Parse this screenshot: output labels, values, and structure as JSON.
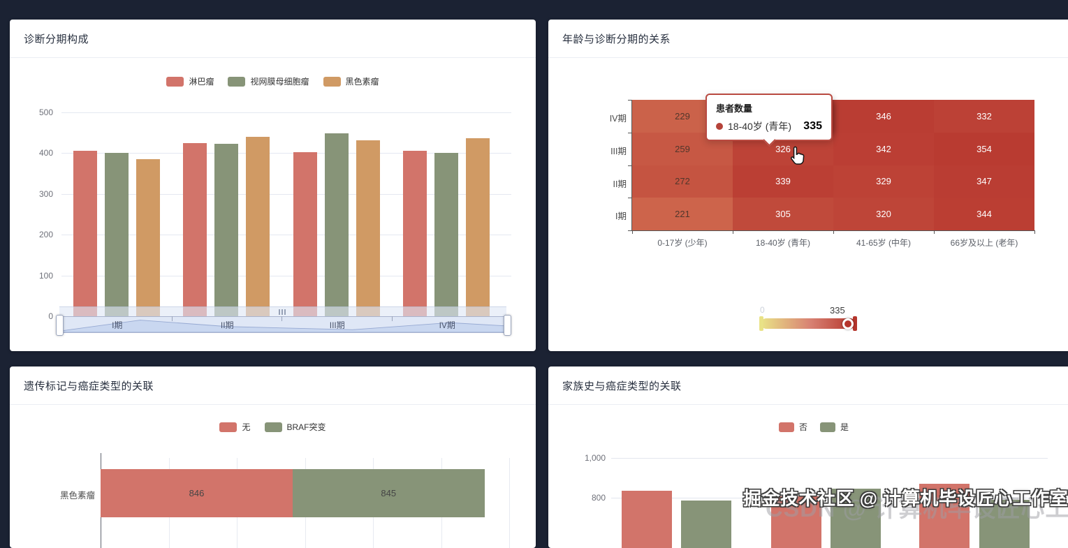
{
  "page": {
    "background": "#1b2233",
    "watermark_front": "掘金技术社区 @ 计算机毕设匠心工作室",
    "watermark_back": "CSDN @ 计算机毕设匠心工作室"
  },
  "palette": {
    "red": "#d2746a",
    "green": "#879478",
    "tan": "#d09a64"
  },
  "cards": [
    {
      "title": "诊断分期构成"
    },
    {
      "title": "年龄与诊断分期的关系"
    },
    {
      "title": "遗传标记与癌症类型的关联"
    },
    {
      "title": "家族史与癌症类型的关联"
    }
  ],
  "chart_data": [
    {
      "type": "bar",
      "title": "诊断分期构成",
      "categories": [
        "I期",
        "II期",
        "III期",
        "IV期"
      ],
      "series": [
        {
          "name": "淋巴瘤",
          "color": "red",
          "values": [
            405,
            424,
            402,
            406
          ]
        },
        {
          "name": "视网膜母细胞瘤",
          "color": "green",
          "values": [
            401,
            423,
            448,
            400
          ]
        },
        {
          "name": "黑色素瘤",
          "color": "tan",
          "values": [
            385,
            440,
            431,
            436
          ]
        }
      ],
      "ylim": [
        0,
        500
      ],
      "yticks": [
        0,
        100,
        200,
        300,
        400,
        500
      ],
      "legend_position": "top",
      "grid": true,
      "datazoom_slider": true
    },
    {
      "type": "heatmap",
      "title": "年龄与诊断分期的关系",
      "x_categories": [
        "0-17岁 (少年)",
        "18-40岁 (青年)",
        "41-65岁 (中年)",
        "66岁及以上 (老年)"
      ],
      "y_categories_top_to_bottom": [
        "IV期",
        "III期",
        "II期",
        "I期"
      ],
      "values_top_to_bottom": [
        [
          229,
          335,
          346,
          332
        ],
        [
          259,
          326,
          342,
          354
        ],
        [
          272,
          339,
          329,
          347
        ],
        [
          221,
          305,
          320,
          344
        ]
      ],
      "hovered_cell": {
        "row": 0,
        "col": 1,
        "value": 335
      },
      "tooltip": {
        "title": "患者数量",
        "marker_color": "#b5433a",
        "label": "18-40岁 (青年)",
        "value": "335"
      },
      "visualmap": {
        "min_label": "0",
        "indicator_label": "335",
        "max": 354,
        "gradient": [
          "#e9e287",
          "#d88273",
          "#b5352c"
        ]
      },
      "heat_scale": {
        "v0": 218,
        "c0": "#cd654c",
        "v1": 356,
        "c1": "#b93a31",
        "dark_text_below": 300
      }
    },
    {
      "type": "bar",
      "title": "遗传标记与癌症类型的关联",
      "orientation": "horizontal",
      "stacked": true,
      "categories": [
        "黑色素瘤"
      ],
      "series": [
        {
          "name": "无",
          "color": "red",
          "values": [
            846
          ]
        },
        {
          "name": "BRAF突变",
          "color": "green",
          "values": [
            845
          ]
        }
      ],
      "xlim": [
        0,
        1800
      ],
      "xtick_step": 300,
      "legend_position": "top"
    },
    {
      "type": "bar",
      "title": "家族史与癌症类型的关联",
      "series": [
        {
          "name": "否",
          "color": "red",
          "values": [
            835,
            805,
            870
          ]
        },
        {
          "name": "是",
          "color": "green",
          "values": [
            785,
            843,
            789
          ]
        }
      ],
      "ytick_labels": [
        "1,000",
        "800"
      ],
      "yticks_visible": [
        1000,
        800
      ],
      "legend_position": "top"
    }
  ]
}
